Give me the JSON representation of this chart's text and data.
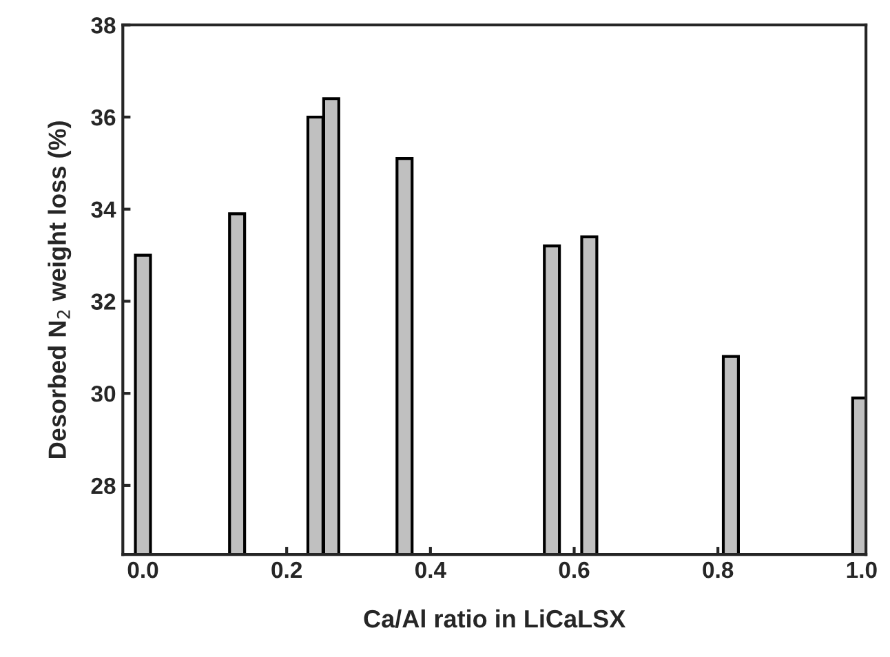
{
  "chart_data": {
    "type": "bar",
    "xlabel": "Ca/Al ratio in LiCaLSX",
    "ylabel": "Desorbed N$_{2}$ weight loss (%)",
    "x": [
      0.0,
      0.131,
      0.24,
      0.262,
      0.364,
      0.569,
      0.621,
      0.818,
      0.998
    ],
    "series": [
      {
        "color": "#c0c0c0",
        "values": [
          33.0,
          33.9,
          36.0,
          36.4,
          35.1,
          33.2,
          33.4,
          30.8,
          29.9
        ]
      }
    ],
    "xlim": [
      -0.028,
      1.006
    ],
    "ylim": [
      26.5,
      38
    ],
    "xticks": [
      {
        "value": 0.0,
        "label": "0.0"
      },
      {
        "value": 0.2,
        "label": "0.2"
      },
      {
        "value": 0.4,
        "label": "0.4"
      },
      {
        "value": 0.6,
        "label": "0.6"
      },
      {
        "value": 0.8,
        "label": "0.8"
      },
      {
        "value": 1.0,
        "label": "1.0"
      }
    ],
    "yticks": [
      28,
      30,
      32,
      34,
      36,
      38
    ],
    "grid": false,
    "legend": false
  }
}
